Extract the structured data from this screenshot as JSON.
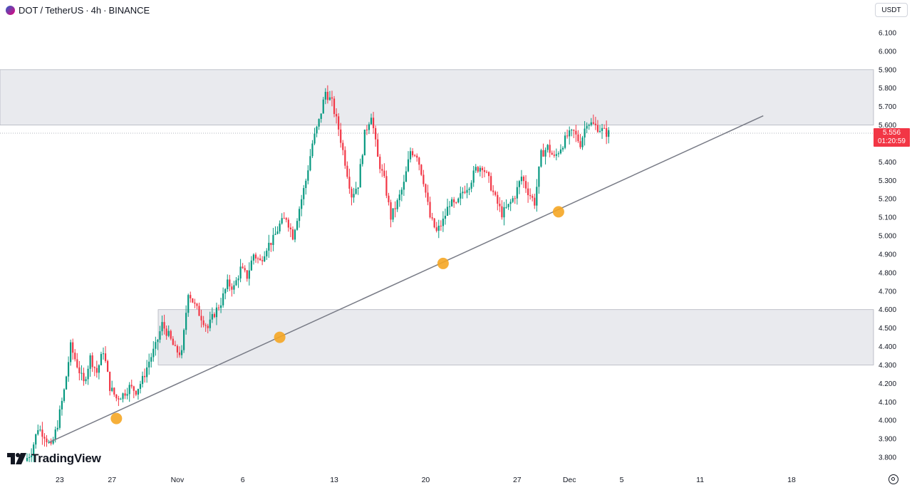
{
  "header": {
    "symbol": "DOT",
    "separator": "/",
    "quote": "TetherUS",
    "interval": "4h",
    "exchange": "BINANCE",
    "icon": "polkadot-coin-icon"
  },
  "currency_selector": "USDT",
  "branding": {
    "logo_text": "TradingView",
    "icon": "tradingview-logo-icon"
  },
  "last_price": {
    "price": "5.556",
    "countdown": "01:20:59",
    "color": "#f23645"
  },
  "settings_icon": "gear-icon",
  "chart_data": {
    "type": "candlestick",
    "title": "DOT / TetherUS · 4h · BINANCE",
    "y_axis": {
      "range": [
        3.76,
        6.16
      ],
      "ticks": [
        "6.100",
        "6.000",
        "5.900",
        "5.800",
        "5.700",
        "5.600",
        "5.500",
        "5.400",
        "5.300",
        "5.200",
        "5.100",
        "5.000",
        "4.900",
        "4.800",
        "4.700",
        "4.600",
        "4.500",
        "4.400",
        "4.300",
        "4.200",
        "4.100",
        "4.000",
        "3.900",
        "3.800"
      ]
    },
    "x_axis": {
      "labels": [
        {
          "label": "23",
          "date": "2023-10-23"
        },
        {
          "label": "27",
          "date": "2023-10-27"
        },
        {
          "label": "Nov",
          "date": "2023-11-01"
        },
        {
          "label": "6",
          "date": "2023-11-06"
        },
        {
          "label": "13",
          "date": "2023-11-13"
        },
        {
          "label": "20",
          "date": "2023-11-20"
        },
        {
          "label": "27",
          "date": "2023-11-27"
        },
        {
          "label": "Dec",
          "date": "2023-12-01"
        },
        {
          "label": "5",
          "date": "2023-12-05"
        },
        {
          "label": "11",
          "date": "2023-12-11"
        },
        {
          "label": "18",
          "date": "2023-12-18"
        }
      ]
    },
    "grid": false,
    "colors": {
      "up": "#089981",
      "down": "#f23645",
      "zone": "#e9eaee",
      "trendline": "#787b86",
      "touch": "#f5a623"
    },
    "price_series": [
      [
        "2023-10-20T12:00",
        3.78
      ],
      [
        "2023-10-21T00:00",
        3.83
      ],
      [
        "2023-10-21T12:00",
        3.96
      ],
      [
        "2023-10-22T00:00",
        3.92
      ],
      [
        "2023-10-22T12:00",
        3.85
      ],
      [
        "2023-10-23T00:00",
        3.98
      ],
      [
        "2023-10-23T12:00",
        4.16
      ],
      [
        "2023-10-24T00:00",
        4.4
      ],
      [
        "2023-10-24T12:00",
        4.3
      ],
      [
        "2023-10-25T00:00",
        4.2
      ],
      [
        "2023-10-25T12:00",
        4.34
      ],
      [
        "2023-10-26T00:00",
        4.26
      ],
      [
        "2023-10-26T12:00",
        4.38
      ],
      [
        "2023-10-27T00:00",
        4.18
      ],
      [
        "2023-10-27T12:00",
        4.12
      ],
      [
        "2023-10-28T00:00",
        4.14
      ],
      [
        "2023-10-28T12:00",
        4.18
      ],
      [
        "2023-10-29T00:00",
        4.16
      ],
      [
        "2023-10-29T12:00",
        4.22
      ],
      [
        "2023-10-30T00:00",
        4.32
      ],
      [
        "2023-10-30T12:00",
        4.4
      ],
      [
        "2023-10-31T00:00",
        4.52
      ],
      [
        "2023-10-31T12:00",
        4.46
      ],
      [
        "2023-11-01T00:00",
        4.38
      ],
      [
        "2023-11-01T12:00",
        4.36
      ],
      [
        "2023-11-02T00:00",
        4.7
      ],
      [
        "2023-11-02T12:00",
        4.62
      ],
      [
        "2023-11-03T00:00",
        4.56
      ],
      [
        "2023-11-03T12:00",
        4.5
      ],
      [
        "2023-11-04T00:00",
        4.58
      ],
      [
        "2023-11-04T12:00",
        4.64
      ],
      [
        "2023-11-05T00:00",
        4.74
      ],
      [
        "2023-11-05T12:00",
        4.72
      ],
      [
        "2023-11-06T00:00",
        4.82
      ],
      [
        "2023-11-06T12:00",
        4.78
      ],
      [
        "2023-11-07T00:00",
        4.9
      ],
      [
        "2023-11-07T12:00",
        4.86
      ],
      [
        "2023-11-08T00:00",
        4.94
      ],
      [
        "2023-11-08T12:00",
        4.98
      ],
      [
        "2023-11-09T00:00",
        5.06
      ],
      [
        "2023-11-09T12:00",
        5.1
      ],
      [
        "2023-11-10T00:00",
        5.0
      ],
      [
        "2023-11-10T12:00",
        5.15
      ],
      [
        "2023-11-11T00:00",
        5.3
      ],
      [
        "2023-11-11T12:00",
        5.5
      ],
      [
        "2023-11-12T00:00",
        5.62
      ],
      [
        "2023-11-12T12:00",
        5.78
      ],
      [
        "2023-11-13T00:00",
        5.72
      ],
      [
        "2023-11-13T12:00",
        5.58
      ],
      [
        "2023-11-14T00:00",
        5.4
      ],
      [
        "2023-11-14T12:00",
        5.22
      ],
      [
        "2023-11-15T00:00",
        5.28
      ],
      [
        "2023-11-15T12:00",
        5.55
      ],
      [
        "2023-11-16T00:00",
        5.66
      ],
      [
        "2023-11-16T12:00",
        5.42
      ],
      [
        "2023-11-17T00:00",
        5.3
      ],
      [
        "2023-11-17T12:00",
        5.1
      ],
      [
        "2023-11-18T00:00",
        5.18
      ],
      [
        "2023-11-18T12:00",
        5.28
      ],
      [
        "2023-11-19T00:00",
        5.46
      ],
      [
        "2023-11-19T12:00",
        5.44
      ],
      [
        "2023-11-20T00:00",
        5.3
      ],
      [
        "2023-11-20T12:00",
        5.1
      ],
      [
        "2023-11-21T00:00",
        5.02
      ],
      [
        "2023-11-21T12:00",
        5.08
      ],
      [
        "2023-11-22T00:00",
        5.18
      ],
      [
        "2023-11-22T12:00",
        5.16
      ],
      [
        "2023-11-23T00:00",
        5.24
      ],
      [
        "2023-11-23T12:00",
        5.28
      ],
      [
        "2023-11-24T00:00",
        5.36
      ],
      [
        "2023-11-24T12:00",
        5.38
      ],
      [
        "2023-11-25T00:00",
        5.3
      ],
      [
        "2023-11-25T12:00",
        5.2
      ],
      [
        "2023-11-26T00:00",
        5.12
      ],
      [
        "2023-11-26T12:00",
        5.16
      ],
      [
        "2023-11-27T00:00",
        5.22
      ],
      [
        "2023-11-27T12:00",
        5.32
      ],
      [
        "2023-11-28T00:00",
        5.24
      ],
      [
        "2023-11-28T12:00",
        5.18
      ],
      [
        "2023-11-29T00:00",
        5.44
      ],
      [
        "2023-11-29T12:00",
        5.48
      ],
      [
        "2023-11-30T00:00",
        5.42
      ],
      [
        "2023-11-30T12:00",
        5.48
      ],
      [
        "2023-12-01T00:00",
        5.54
      ],
      [
        "2023-12-01T12:00",
        5.56
      ],
      [
        "2023-12-02T00:00",
        5.5
      ],
      [
        "2023-12-02T12:00",
        5.62
      ],
      [
        "2023-12-03T00:00",
        5.6
      ],
      [
        "2023-12-03T12:00",
        5.58
      ],
      [
        "2023-12-04T00:00",
        5.556
      ]
    ],
    "zones": [
      {
        "name": "resistance",
        "low": 5.6,
        "high": 5.9
      },
      {
        "name": "support",
        "low": 4.3,
        "high": 4.6
      }
    ],
    "trendline": {
      "from": [
        "2023-10-22T04:00",
        3.88
      ],
      "to": [
        "2023-12-15T20:00",
        5.65
      ]
    },
    "touch_points": [
      [
        "2023-10-27T08:00",
        4.01
      ],
      [
        "2023-11-08T20:00",
        4.45
      ],
      [
        "2023-11-21T08:00",
        4.85
      ],
      [
        "2023-11-30T04:00",
        5.13
      ]
    ],
    "last_price_line": 5.556
  }
}
